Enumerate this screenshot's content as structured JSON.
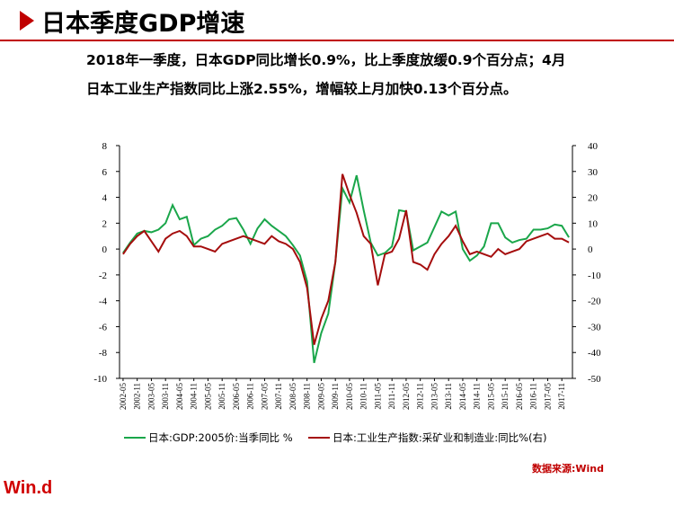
{
  "header": {
    "title": "日本季度GDP增速"
  },
  "subtitle": [
    "2018年一季度，日本GDP同比增长0.9%，比上季度放缓0.9个百分点；4月",
    "日本工业生产指数同比上涨2.55%，增幅较上月加快0.13个百分点。"
  ],
  "chart_data": {
    "type": "line",
    "categories": [
      "2002-05",
      null,
      "2002-11",
      null,
      "2003-05",
      null,
      "2003-11",
      null,
      "2004-05",
      null,
      "2004-11",
      null,
      "2005-05",
      null,
      "2005-11",
      null,
      "2006-05",
      null,
      "2006-11",
      null,
      "2007-05",
      null,
      "2007-11",
      null,
      "2008-05",
      null,
      "2008-11",
      null,
      "2009-05",
      null,
      "2009-11",
      null,
      "2010-05",
      null,
      "2010-11",
      null,
      "2011-05",
      null,
      "2011-11",
      null,
      "2012-05",
      null,
      "2012-11",
      null,
      "2013-05",
      null,
      "2013-11",
      null,
      "2014-05",
      null,
      "2014-11",
      null,
      "2015-05",
      null,
      "2015-11",
      null,
      "2016-05",
      null,
      "2016-11",
      null,
      "2017-05",
      null,
      "2017-11",
      null
    ],
    "series": [
      {
        "name": "日本:GDP:2005价:当季同比  %",
        "color": "#1aa64a",
        "values": [
          -0.3,
          0.5,
          1.2,
          1.4,
          1.3,
          1.5,
          2.0,
          3.4,
          2.3,
          2.5,
          0.3,
          0.8,
          1.0,
          1.5,
          1.8,
          2.3,
          2.4,
          1.5,
          0.4,
          1.6,
          2.3,
          1.8,
          1.4,
          1.0,
          0.3,
          -0.5,
          -2.5,
          -8.8,
          -6.5,
          -5.0,
          -1.0,
          4.7,
          3.6,
          5.7,
          3.0,
          0.5,
          -0.5,
          -0.3,
          0.2,
          3.0,
          2.9,
          -0.1,
          0.2,
          0.5,
          1.7,
          2.9,
          2.6,
          2.9,
          0.0,
          -0.9,
          -0.5,
          0.2,
          2.0,
          2.0,
          0.9,
          0.5,
          0.7,
          0.8,
          1.5,
          1.5,
          1.6,
          1.9,
          1.8,
          0.9
        ]
      },
      {
        "name": "日本:工业生产指数:采矿业和制造业:同比%(右)",
        "color": "#a50d0d",
        "axis": "y2",
        "values": [
          -2,
          2,
          5,
          7,
          3,
          -1,
          4,
          6,
          7,
          5,
          1,
          1,
          0,
          -1,
          2,
          3,
          4,
          5,
          4,
          3,
          2,
          5,
          3,
          2,
          0,
          -5,
          -15,
          -37,
          -27,
          -20,
          -5,
          29,
          21,
          14,
          5,
          2,
          -14,
          -2,
          -1,
          4,
          15,
          -5,
          -6,
          -8,
          -2,
          2,
          5,
          9,
          3,
          -2,
          -1,
          -2,
          -3,
          0,
          -2,
          -1,
          0,
          3,
          4,
          5,
          6,
          4,
          4,
          2.55
        ]
      }
    ],
    "ylim": [
      -10,
      8
    ],
    "yticks": [
      -10,
      -8,
      -6,
      -4,
      -2,
      0,
      2,
      4,
      6,
      8
    ],
    "y2lim": [
      -50,
      40
    ],
    "y2ticks": [
      -50,
      -40,
      -30,
      -20,
      -10,
      0,
      10,
      20,
      30,
      40
    ],
    "legend": "bottom"
  },
  "source": "数据来源:Wind",
  "logo": "Win.d"
}
